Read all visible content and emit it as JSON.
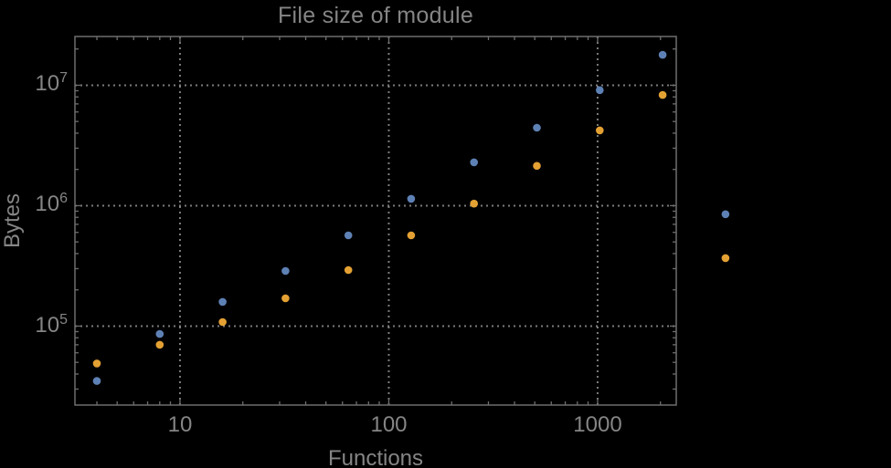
{
  "chart_data": {
    "type": "scatter",
    "title": "File size of module",
    "xlabel": "Functions",
    "ylabel": "Bytes",
    "x_scale": "log",
    "y_scale": "log",
    "xlim": [
      3.14,
      2380
    ],
    "ylim": [
      22100,
      25400000
    ],
    "grid": "dotted gridlines at decade majors, on",
    "legend": "none",
    "plot_range_clipping": false,
    "x_major_ticks": [
      10,
      100,
      1000
    ],
    "x_tick_labels": [
      "10",
      "100",
      "1000"
    ],
    "y_major_ticks": [
      100000,
      1000000,
      10000000
    ],
    "y_tick_labels": [
      {
        "base": "10",
        "exp": "5"
      },
      {
        "base": "10",
        "exp": "6"
      },
      {
        "base": "10",
        "exp": "7"
      }
    ],
    "x": [
      4,
      8,
      16,
      32,
      64,
      128,
      256,
      512,
      1024,
      2048,
      4096
    ],
    "series": [
      {
        "name": "series-1-blue",
        "color": "#5e81b5",
        "values": [
          35000,
          86000,
          159000,
          287000,
          567000,
          1140000,
          2290000,
          4440000,
          9100000,
          17900000,
          850000
        ]
      },
      {
        "name": "series-2-orange",
        "color": "#e4a133",
        "values": [
          49000,
          70000,
          108000,
          170000,
          292000,
          567000,
          1040000,
          2140000,
          4220000,
          8300000,
          367000
        ]
      }
    ]
  },
  "colors": {
    "background": "#000000",
    "frame": "#6e6e6e",
    "gridline": "#9a9a9a",
    "labels": "#858585",
    "series_blue": "#5e81b5",
    "series_orange": "#e4a133"
  }
}
